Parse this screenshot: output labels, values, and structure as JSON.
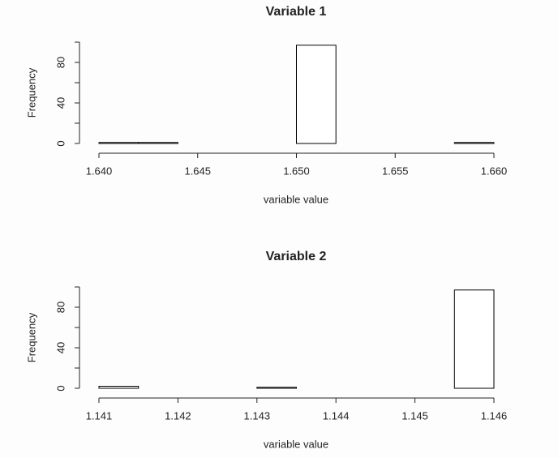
{
  "chart_data": [
    {
      "type": "histogram",
      "title": "Variable 1",
      "xlabel": "variable value",
      "ylabel": "Frequency",
      "bins": [
        1.64,
        1.642,
        1.644,
        1.646,
        1.648,
        1.65,
        1.652,
        1.654,
        1.656,
        1.658,
        1.66
      ],
      "values": [
        1,
        1,
        0,
        0,
        0,
        97,
        0,
        0,
        0,
        1
      ],
      "xlim": [
        1.64,
        1.66
      ],
      "xticks": [
        {
          "value": 1.64,
          "label": "1.640"
        },
        1.645,
        {
          "value": 1.65,
          "label": "1.650"
        },
        1.655,
        {
          "value": 1.66,
          "label": "1.660"
        }
      ],
      "ylim": [
        0,
        100
      ],
      "yticks": [
        0,
        40,
        80
      ],
      "y_minor_ticks": [
        20,
        60,
        100
      ]
    },
    {
      "type": "histogram",
      "title": "Variable 2",
      "xlabel": "variable value",
      "ylabel": "Frequency",
      "bins": [
        1.141,
        1.1415,
        1.142,
        1.1425,
        1.143,
        1.1435,
        1.144,
        1.1445,
        1.145,
        1.1455,
        1.146
      ],
      "values": [
        2,
        0,
        0,
        0,
        1,
        0,
        0,
        0,
        0,
        97
      ],
      "xlim": [
        1.141,
        1.146
      ],
      "xticks": [
        1.141,
        1.142,
        1.143,
        1.144,
        1.145,
        1.146
      ],
      "ylim": [
        0,
        100
      ],
      "yticks": [
        0,
        40,
        80
      ],
      "y_minor_ticks": [
        20,
        60,
        100
      ]
    }
  ]
}
